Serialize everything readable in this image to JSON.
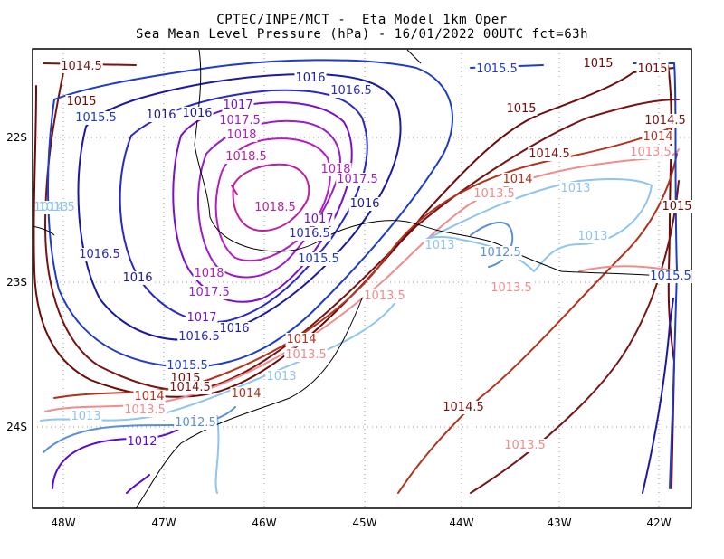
{
  "header": {
    "line1": "CPTEC/INPE/MCT -  Eta Model 1km Oper",
    "line2": "Sea Mean Level Pressure (hPa) - 16/01/2022 00UTC fct=63h"
  },
  "axes": {
    "lon_labels": [
      "48W",
      "47W",
      "46W",
      "45W",
      "44W",
      "43W",
      "42W"
    ],
    "lat_labels": [
      "22S",
      "23S",
      "24S"
    ]
  },
  "colors": {
    "c1012": "#5a0ad2",
    "c10125": "#5b8fd8",
    "c1013": "#8fc4ef",
    "c10135": "#f08c8c",
    "c1014": "#b4321e",
    "c10145": "#781414",
    "c1015": "#6e0a0a",
    "c10155": "#1e3cc8",
    "c1016": "#1a1aa0",
    "c10165": "#2828c8",
    "c1017": "#7a10c8",
    "c10175": "#9a1ec8",
    "c1018": "#b41ec0",
    "c10185": "#c01ea0",
    "coast": "#000000"
  },
  "contour_labels": [
    {
      "text": "1014.5",
      "color": "c10145"
    },
    {
      "text": "1015",
      "color": "c1015"
    },
    {
      "text": "1015.5",
      "color": "c10155"
    },
    {
      "text": "1016",
      "color": "c1016"
    },
    {
      "text": "1016.5",
      "color": "c10165"
    },
    {
      "text": "1016",
      "color": "c1016"
    },
    {
      "text": "1016",
      "color": "c1016"
    },
    {
      "text": "1017",
      "color": "c1017"
    },
    {
      "text": "1017.5",
      "color": "c10175"
    },
    {
      "text": "1018",
      "color": "c1018"
    },
    {
      "text": "1018.5",
      "color": "c10185"
    },
    {
      "text": "1018",
      "color": "c1018"
    },
    {
      "text": "1017.5",
      "color": "c10175"
    },
    {
      "text": "1018.5",
      "color": "c10185"
    },
    {
      "text": "1017",
      "color": "c1017"
    },
    {
      "text": "1016.5",
      "color": "c10165"
    },
    {
      "text": "1015.5",
      "color": "c10155"
    },
    {
      "text": "1016",
      "color": "c1016"
    },
    {
      "text": "1016.5",
      "color": "c10165"
    },
    {
      "text": "1016",
      "color": "c1016"
    },
    {
      "text": "1018",
      "color": "c1018"
    },
    {
      "text": "1017.5",
      "color": "c10175"
    },
    {
      "text": "1017",
      "color": "c1017"
    },
    {
      "text": "1016.5",
      "color": "c10165"
    },
    {
      "text": "1016",
      "color": "c1016"
    },
    {
      "text": "1015.5",
      "color": "c10155"
    },
    {
      "text": "1015",
      "color": "c1015"
    },
    {
      "text": "1014.5",
      "color": "c10145"
    },
    {
      "text": "1014",
      "color": "c1014"
    },
    {
      "text": "1013.5",
      "color": "c10135"
    },
    {
      "text": "1013",
      "color": "c1013"
    },
    {
      "text": "1012.5",
      "color": "c10125"
    },
    {
      "text": "1012",
      "color": "c1012"
    },
    {
      "text": "1015.5",
      "color": "c10155"
    },
    {
      "text": "1015",
      "color": "c1015"
    },
    {
      "text": "1015",
      "color": "c1015"
    },
    {
      "text": "1015",
      "color": "c1015"
    },
    {
      "text": "1014.5",
      "color": "c10145"
    },
    {
      "text": "1014.5",
      "color": "c10145"
    },
    {
      "text": "1014",
      "color": "c1014"
    },
    {
      "text": "1014",
      "color": "c1014"
    },
    {
      "text": "1013.5",
      "color": "c10135"
    },
    {
      "text": "1013.5",
      "color": "c10135"
    },
    {
      "text": "1013",
      "color": "c1013"
    },
    {
      "text": "1013",
      "color": "c1013"
    },
    {
      "text": "1013",
      "color": "c1013"
    },
    {
      "text": "1012.5",
      "color": "c10125"
    },
    {
      "text": "1013.5",
      "color": "c10135"
    },
    {
      "text": "1015",
      "color": "c1015"
    },
    {
      "text": "1015.5",
      "color": "c10155"
    },
    {
      "text": "1013.5",
      "color": "c10135"
    },
    {
      "text": "1014",
      "color": "c1014"
    },
    {
      "text": "1013.5",
      "color": "c10135"
    },
    {
      "text": "1013",
      "color": "c1013"
    },
    {
      "text": "1014",
      "color": "c1014"
    },
    {
      "text": "1014.5",
      "color": "c10145"
    },
    {
      "text": "1013.5",
      "color": "c10135"
    },
    {
      "text": "1013",
      "color": "c1013"
    },
    {
      "text": "1014.5",
      "color": "c10145"
    }
  ]
}
